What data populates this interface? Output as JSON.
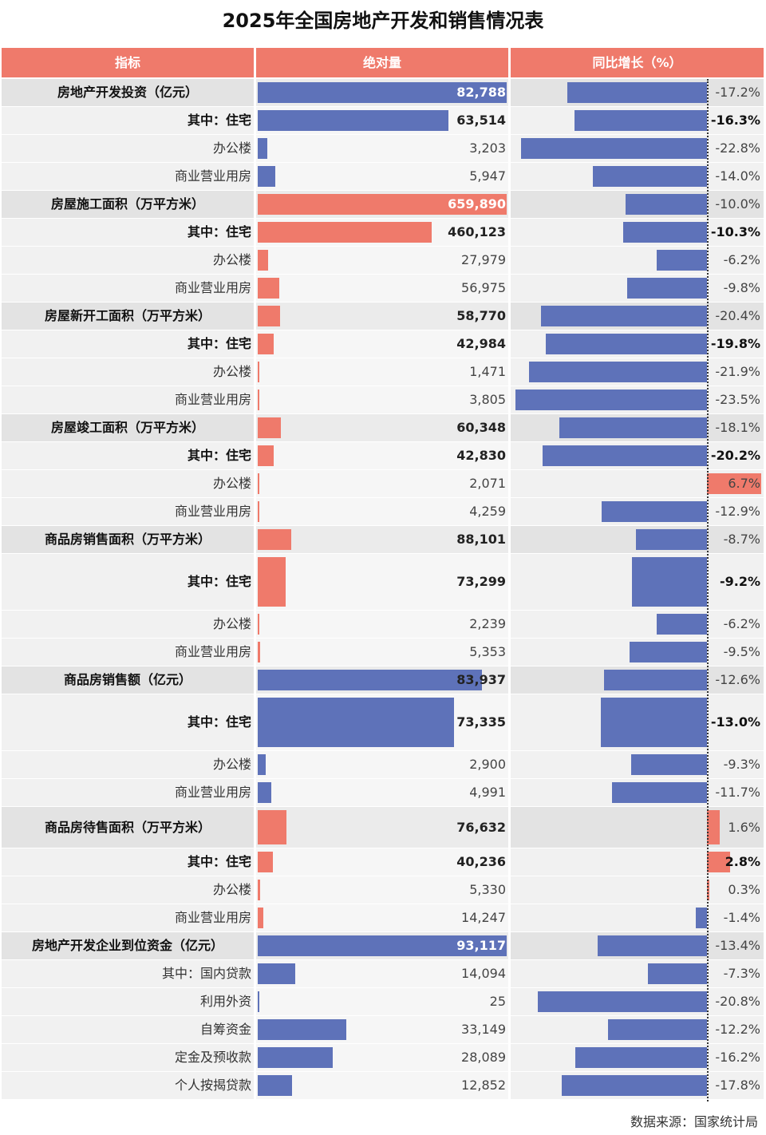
{
  "title": "2025年全国房地产开发和销售情况表",
  "headers": {
    "indicator": "指标",
    "absolute": "绝对量",
    "growth": "同比增长（%）"
  },
  "colors": {
    "header": "#ef7a6b",
    "positive": "#ef7a6b",
    "negative": "#5e72b9",
    "row_main": "#e3e3e3",
    "row_sub": "#f1f1f1"
  },
  "source": "数据来源：国家统计局",
  "chart_data": {
    "type": "table",
    "columns": [
      "指标",
      "绝对量",
      "同比增长（%）"
    ],
    "rows": [
      {
        "label": "房地产开发投资（亿元）",
        "level": "main",
        "value": 82788,
        "value_text": "82,788",
        "growth": -17.2,
        "growth_text": "-17.2%",
        "bar_color": "negative"
      },
      {
        "label": "其中：住宅",
        "level": "bold",
        "value": 63514,
        "value_text": "63,514",
        "growth": -16.3,
        "growth_text": "-16.3%",
        "bar_color": "negative"
      },
      {
        "label": "办公楼",
        "level": "sub",
        "value": 3203,
        "value_text": "3,203",
        "growth": -22.8,
        "growth_text": "-22.8%",
        "bar_color": "negative"
      },
      {
        "label": "商业营业用房",
        "level": "sub",
        "value": 5947,
        "value_text": "5,947",
        "growth": -14.0,
        "growth_text": "-14.0%",
        "bar_color": "negative"
      },
      {
        "label": "房屋施工面积（万平方米）",
        "level": "main",
        "value": 659890,
        "value_text": "659,890",
        "growth": -10.0,
        "growth_text": "-10.0%",
        "bar_color": "positive"
      },
      {
        "label": "其中：住宅",
        "level": "bold",
        "value": 460123,
        "value_text": "460,123",
        "growth": -10.3,
        "growth_text": "-10.3%",
        "bar_color": "positive"
      },
      {
        "label": "办公楼",
        "level": "sub",
        "value": 27979,
        "value_text": "27,979",
        "growth": -6.2,
        "growth_text": "-6.2%",
        "bar_color": "positive"
      },
      {
        "label": "商业营业用房",
        "level": "sub",
        "value": 56975,
        "value_text": "56,975",
        "growth": -9.8,
        "growth_text": "-9.8%",
        "bar_color": "positive"
      },
      {
        "label": "房屋新开工面积（万平方米）",
        "level": "main",
        "value": 58770,
        "value_text": "58,770",
        "growth": -20.4,
        "growth_text": "-20.4%",
        "bar_color": "positive"
      },
      {
        "label": "其中：住宅",
        "level": "bold",
        "value": 42984,
        "value_text": "42,984",
        "growth": -19.8,
        "growth_text": "-19.8%",
        "bar_color": "positive"
      },
      {
        "label": "办公楼",
        "level": "sub",
        "value": 1471,
        "value_text": "1,471",
        "growth": -21.9,
        "growth_text": "-21.9%",
        "bar_color": "positive"
      },
      {
        "label": "商业营业用房",
        "level": "sub",
        "value": 3805,
        "value_text": "3,805",
        "growth": -23.5,
        "growth_text": "-23.5%",
        "bar_color": "positive"
      },
      {
        "label": "房屋竣工面积（万平方米）",
        "level": "main",
        "value": 60348,
        "value_text": "60,348",
        "growth": -18.1,
        "growth_text": "-18.1%",
        "bar_color": "positive"
      },
      {
        "label": "其中：住宅",
        "level": "bold",
        "value": 42830,
        "value_text": "42,830",
        "growth": -20.2,
        "growth_text": "-20.2%",
        "bar_color": "positive"
      },
      {
        "label": "办公楼",
        "level": "sub",
        "value": 2071,
        "value_text": "2,071",
        "growth": 6.7,
        "growth_text": "6.7%",
        "bar_color": "positive"
      },
      {
        "label": "商业营业用房",
        "level": "sub",
        "value": 4259,
        "value_text": "4,259",
        "growth": -12.9,
        "growth_text": "-12.9%",
        "bar_color": "positive"
      },
      {
        "label": "商品房销售面积（万平方米）",
        "level": "main",
        "value": 88101,
        "value_text": "88,101",
        "growth": -8.7,
        "growth_text": "-8.7%",
        "bar_color": "positive"
      },
      {
        "label": "其中：住宅",
        "level": "bold",
        "value": 73299,
        "value_text": "73,299",
        "growth": -9.2,
        "growth_text": "-9.2%",
        "bar_color": "positive"
      },
      {
        "label": "办公楼",
        "level": "sub",
        "value": 2239,
        "value_text": "2,239",
        "growth": -6.2,
        "growth_text": "-6.2%",
        "bar_color": "positive"
      },
      {
        "label": "商业营业用房",
        "level": "sub",
        "value": 5353,
        "value_text": "5,353",
        "growth": -9.5,
        "growth_text": "-9.5%",
        "bar_color": "positive"
      },
      {
        "label": "商品房销售额（亿元）",
        "level": "main",
        "value": 83937,
        "value_text": "83,937",
        "growth": -12.6,
        "growth_text": "-12.6%",
        "bar_color": "negative"
      },
      {
        "label": "其中：住宅",
        "level": "bold",
        "value": 73335,
        "value_text": "73,335",
        "growth": -13.0,
        "growth_text": "-13.0%",
        "bar_color": "negative"
      },
      {
        "label": "办公楼",
        "level": "sub",
        "value": 2900,
        "value_text": "2,900",
        "growth": -9.3,
        "growth_text": "-9.3%",
        "bar_color": "negative"
      },
      {
        "label": "商业营业用房",
        "level": "sub",
        "value": 4991,
        "value_text": "4,991",
        "growth": -11.7,
        "growth_text": "-11.7%",
        "bar_color": "negative"
      },
      {
        "label": "商品房待售面积（万平方米）",
        "level": "main",
        "value": 76632,
        "value_text": "76,632",
        "growth": 1.6,
        "growth_text": "1.6%",
        "bar_color": "positive"
      },
      {
        "label": "其中：住宅",
        "level": "bold",
        "value": 40236,
        "value_text": "40,236",
        "growth": 2.8,
        "growth_text": "2.8%",
        "bar_color": "positive"
      },
      {
        "label": "办公楼",
        "level": "sub",
        "value": 5330,
        "value_text": "5,330",
        "growth": 0.3,
        "growth_text": "0.3%",
        "bar_color": "positive"
      },
      {
        "label": "商业营业用房",
        "level": "sub",
        "value": 14247,
        "value_text": "14,247",
        "growth": -1.4,
        "growth_text": "-1.4%",
        "bar_color": "positive"
      },
      {
        "label": "房地产开发企业到位资金（亿元）",
        "level": "main",
        "value": 93117,
        "value_text": "93,117",
        "growth": -13.4,
        "growth_text": "-13.4%",
        "bar_color": "negative"
      },
      {
        "label": "其中：国内贷款",
        "level": "sub",
        "value": 14094,
        "value_text": "14,094",
        "growth": -7.3,
        "growth_text": "-7.3%",
        "bar_color": "negative"
      },
      {
        "label": "利用外资",
        "level": "sub",
        "value": 25,
        "value_text": "25",
        "growth": -20.8,
        "growth_text": "-20.8%",
        "bar_color": "negative"
      },
      {
        "label": "自筹资金",
        "level": "sub",
        "value": 33149,
        "value_text": "33,149",
        "growth": -12.2,
        "growth_text": "-12.2%",
        "bar_color": "negative"
      },
      {
        "label": "定金及预收款",
        "level": "sub",
        "value": 28089,
        "value_text": "28,089",
        "growth": -16.2,
        "growth_text": "-16.2%",
        "bar_color": "negative"
      },
      {
        "label": "个人按揭贷款",
        "level": "sub",
        "value": 12852,
        "value_text": "12,852",
        "growth": -17.8,
        "growth_text": "-17.8%",
        "bar_color": "negative"
      }
    ]
  }
}
